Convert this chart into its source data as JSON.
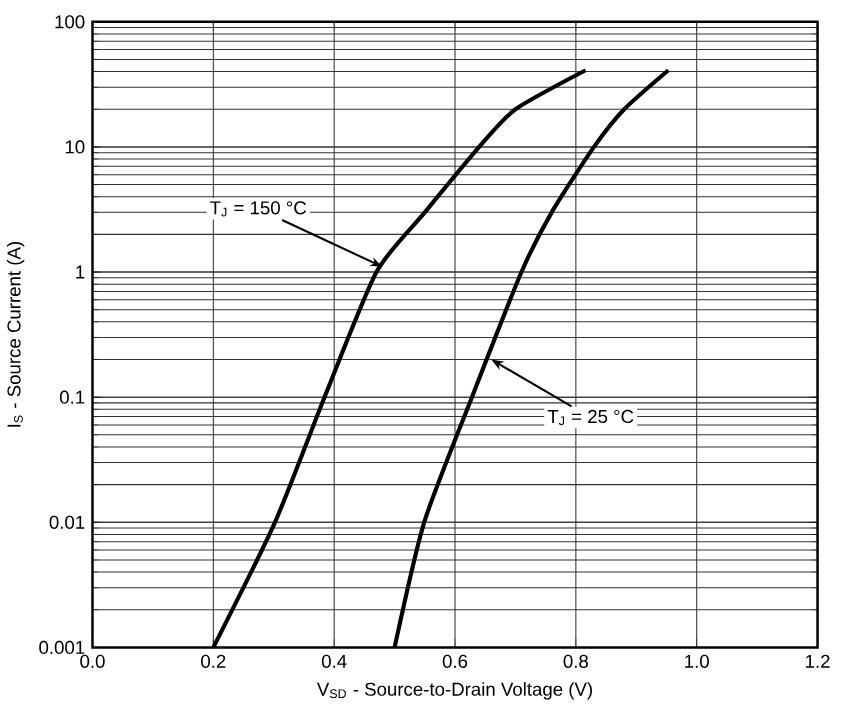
{
  "chart_data": {
    "type": "line",
    "xlabel": "V$_{SD}$ - Source-to-Drain Voltage (V)",
    "ylabel": "I$_{S}$ - Source Current (A)",
    "log": "y",
    "grid": true,
    "marker": "none",
    "line_style": "solid",
    "xlim": [
      0,
      1.2
    ],
    "ylim": [
      0.001,
      100
    ],
    "xticks": [
      {
        "value": 0,
        "label": "0.0"
      },
      0.2,
      0.4,
      0.6,
      0.8,
      {
        "value": 1,
        "label": "1.0"
      },
      1.2
    ],
    "yticks": [
      0.001,
      0.01,
      0.1,
      1,
      10,
      100
    ],
    "series": [
      {
        "color": "#000000",
        "x": [
          0.2,
          0.302,
          0.384,
          0.47,
          0.55,
          0.64,
          0.7,
          0.816
        ],
        "values": [
          0.001,
          0.01,
          0.1,
          1,
          3,
          10,
          20,
          41
        ]
      },
      {
        "color": "#000000",
        "x": [
          0.5,
          0.549,
          0.628,
          0.71,
          0.76,
          0.83,
          0.88,
          0.953
        ],
        "values": [
          0.001,
          0.01,
          0.1,
          1,
          3,
          10,
          20,
          41
        ]
      }
    ],
    "annotations": [
      {
        "text": "T$_{J}$ = 150 °C",
        "x": 0.48,
        "y": 1.1
      },
      {
        "text": "T$_{J}$ = 25 °C",
        "x": 0.66,
        "y": 0.2
      }
    ]
  }
}
